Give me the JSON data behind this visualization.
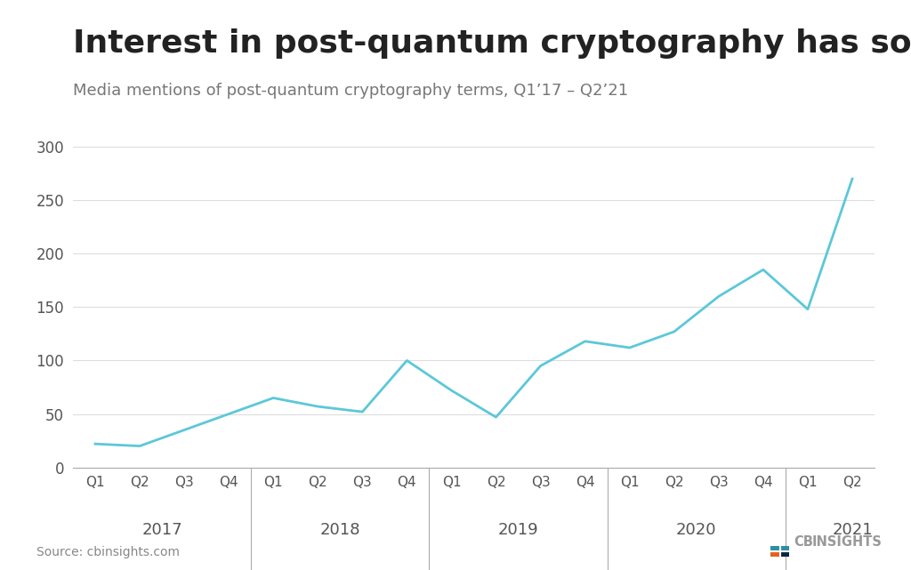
{
  "title": "Interest in post-quantum cryptography has soared",
  "subtitle": "Media mentions of post-quantum cryptography terms, Q1’17 – Q2’21",
  "source": "Source: cbinsights.com",
  "line_color": "#5bc8d8",
  "background_color": "#ffffff",
  "values": [
    22,
    20,
    35,
    50,
    65,
    57,
    52,
    100,
    72,
    47,
    95,
    118,
    112,
    127,
    160,
    185,
    148,
    270
  ],
  "quarters": [
    "Q1",
    "Q2",
    "Q3",
    "Q4",
    "Q1",
    "Q2",
    "Q3",
    "Q4",
    "Q1",
    "Q2",
    "Q3",
    "Q4",
    "Q1",
    "Q2",
    "Q3",
    "Q4",
    "Q1",
    "Q2"
  ],
  "years": [
    "2017",
    "2018",
    "2019",
    "2020",
    "2021"
  ],
  "year_positions": [
    1.5,
    5.5,
    9.5,
    13.5,
    17
  ],
  "year_group_starts": [
    0,
    4,
    8,
    12,
    16
  ],
  "year_group_ends": [
    3,
    7,
    11,
    15,
    17
  ],
  "ylim": [
    0,
    320
  ],
  "yticks": [
    0,
    50,
    100,
    150,
    200,
    250,
    300
  ],
  "title_fontsize": 26,
  "subtitle_fontsize": 13,
  "tick_fontsize": 12,
  "year_fontsize": 13,
  "logo_colors": {
    "dark_blue": "#1a3a5c",
    "teal": "#2e8fa3",
    "orange": "#e5621c"
  },
  "line_width": 2.0
}
